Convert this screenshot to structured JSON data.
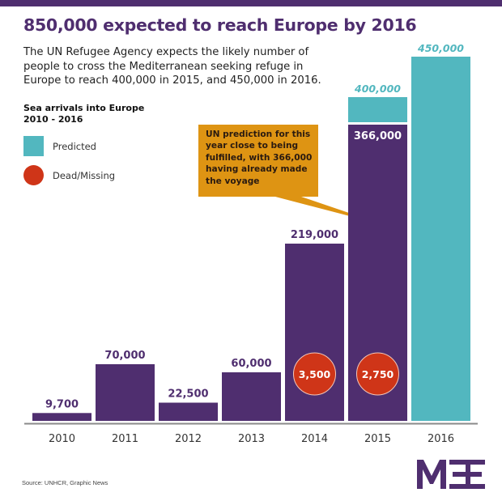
{
  "header": {
    "title": "850,000 expected to reach Europe by 2016",
    "subtitle": "The UN Refugee Agency expects the likely number of people to cross the Mediterranean seeking refuge in Europe to reach 400,000 in 2015, and 450,000 in 2016."
  },
  "legend": {
    "title_line1": "Sea arrivals into Europe",
    "title_line2": "2010 - 2016",
    "items": [
      {
        "label": "Predicted",
        "shape": "square",
        "color": "#52b7bf"
      },
      {
        "label": "Dead/Missing",
        "shape": "circle",
        "color": "#cf3518"
      }
    ]
  },
  "callout": {
    "text": "UN prediction for this year close to being fulfilled, with 366,000 having already made the voyage",
    "color": "#de9413"
  },
  "colors": {
    "actual": "#4f2e6f",
    "predicted": "#52b7bf",
    "dead": "#cf3518",
    "axis": "#8a8a8a"
  },
  "footer": {
    "source": "Source: UNHCR, Graphic News",
    "logo": "MEE"
  },
  "chart_data": {
    "type": "bar",
    "title": "Sea arrivals into Europe 2010 - 2016",
    "xlabel": "",
    "ylabel": "",
    "ylim": [
      0,
      450000
    ],
    "grid": false,
    "legend_position": "top-left",
    "categories": [
      "2010",
      "2011",
      "2012",
      "2013",
      "2014",
      "2015",
      "2016"
    ],
    "series": [
      {
        "name": "Sea arrivals",
        "values": [
          9700,
          70000,
          22500,
          60000,
          219000,
          366000,
          null
        ],
        "labels": [
          "9,700",
          "70,000",
          "22,500",
          "60,000",
          "219,000",
          "366,000",
          ""
        ]
      },
      {
        "name": "Predicted",
        "values": [
          null,
          null,
          null,
          null,
          null,
          400000,
          450000
        ],
        "labels": [
          "",
          "",
          "",
          "",
          "",
          "400,000",
          "450,000"
        ]
      },
      {
        "name": "Dead/Missing",
        "values": [
          null,
          null,
          null,
          null,
          3500,
          2750,
          null
        ],
        "labels": [
          "",
          "",
          "",
          "",
          "3,500",
          "2,750",
          ""
        ]
      }
    ]
  }
}
